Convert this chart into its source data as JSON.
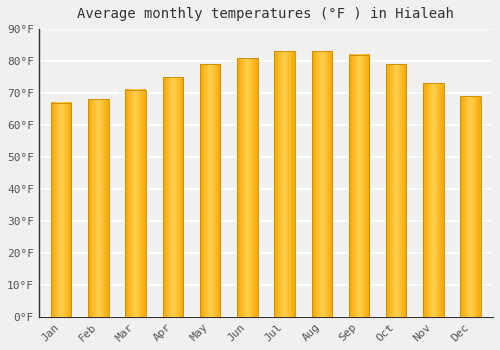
{
  "title": "Average monthly temperatures (°F ) in Hialeah",
  "categories": [
    "Jan",
    "Feb",
    "Mar",
    "Apr",
    "May",
    "Jun",
    "Jul",
    "Aug",
    "Sep",
    "Oct",
    "Nov",
    "Dec"
  ],
  "values": [
    67,
    68,
    71,
    75,
    79,
    81,
    83,
    83,
    82,
    79,
    73,
    69
  ],
  "bar_color_left": "#F5A800",
  "bar_color_mid": "#FFD050",
  "bar_color_right": "#F5A800",
  "background_color": "#f0f0f0",
  "plot_bg_color": "#f0f0f0",
  "ylim": [
    0,
    90
  ],
  "yticks": [
    0,
    10,
    20,
    30,
    40,
    50,
    60,
    70,
    80,
    90
  ],
  "ytick_labels": [
    "0°F",
    "10°F",
    "20°F",
    "30°F",
    "40°F",
    "50°F",
    "60°F",
    "70°F",
    "80°F",
    "90°F"
  ],
  "title_fontsize": 10,
  "tick_fontsize": 8,
  "grid_color": "#ffffff",
  "spine_color": "#333333",
  "tick_color": "#555555"
}
